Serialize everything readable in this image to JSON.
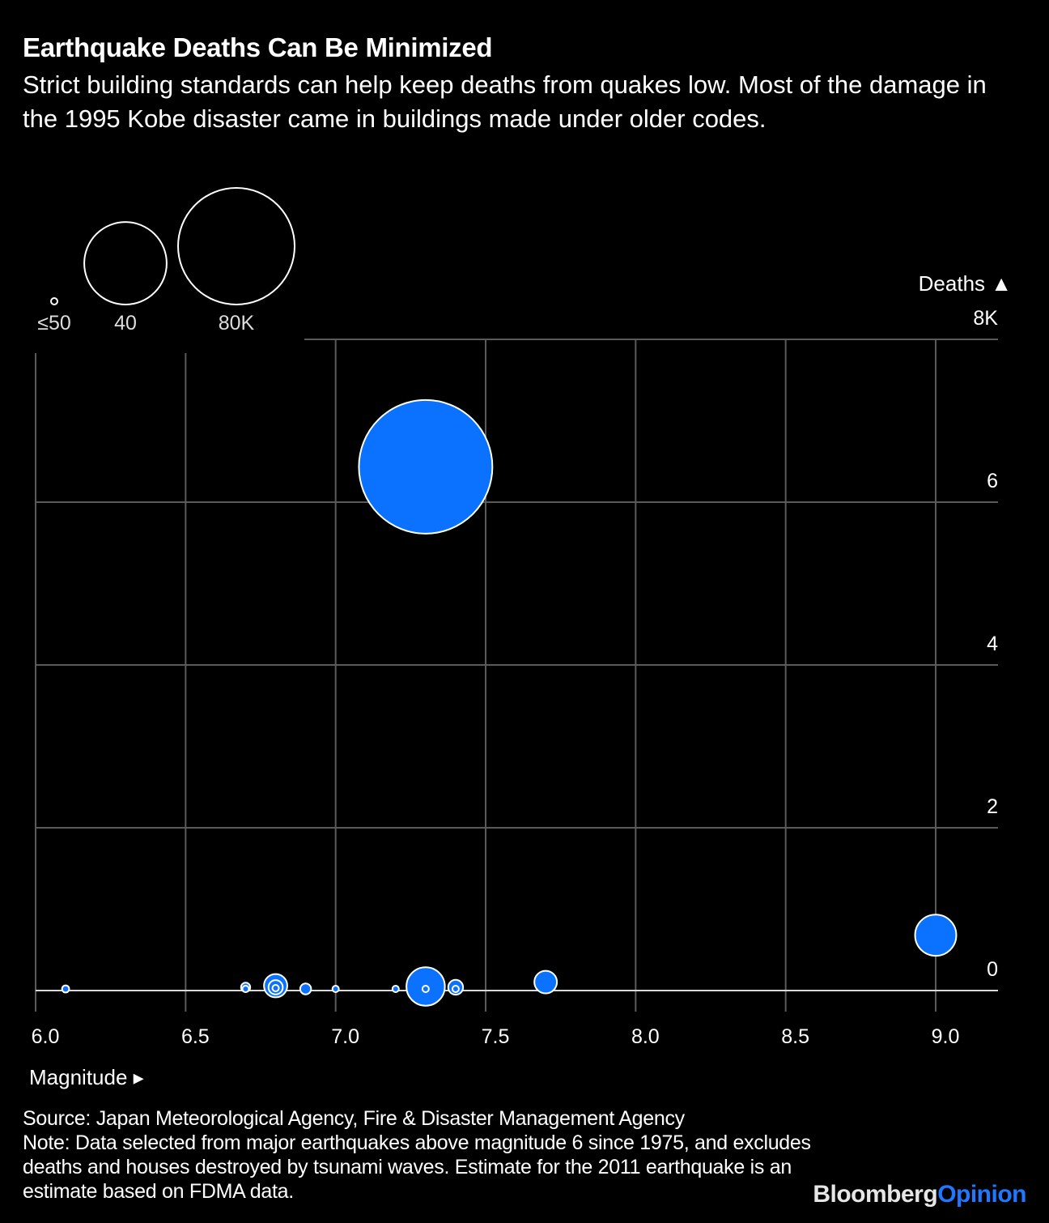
{
  "header": {
    "title": "Earthquake Deaths Can Be Minimized",
    "subtitle": "Strict building standards can help keep deaths from quakes low. Most of the damage in the 1995 Kobe disaster came in buildings made under older codes."
  },
  "footer": {
    "source": "Source: Japan Meteorological Agency, Fire & Disaster Management Agency",
    "note": "Note: Data selected from major earthquakes above magnitude 6 since 1975, and excludes deaths and houses destroyed by tsunami waves. Estimate for the 2011 earthquake is an estimate based on FDMA data."
  },
  "brand": {
    "part1": "Bloomberg",
    "part2": "Opinion"
  },
  "colors": {
    "background": "#000000",
    "bubble": "#0a72ff",
    "bubble_stroke": "#ffffff",
    "grid": "#5a5a5a",
    "baseline": "#d9d9d9",
    "brand_accent": "#1f78ff"
  },
  "chart_data": {
    "type": "scatter",
    "title": "Earthquake Deaths Can Be Minimized",
    "xlabel": "Magnitude ▸",
    "ylabel": "Deaths ▲",
    "xlim": [
      6.0,
      9.2
    ],
    "ylim": [
      0,
      8000
    ],
    "x_ticks": [
      6.0,
      6.5,
      7.0,
      7.5,
      8.0,
      8.5,
      9.0
    ],
    "x_tick_labels": [
      "6.0",
      "6.5",
      "7.0",
      "7.5",
      "8.0",
      "8.5",
      "9.0"
    ],
    "y_ticks": [
      0,
      2000,
      4000,
      6000,
      8000
    ],
    "y_tick_labels": [
      "0",
      "2",
      "4",
      "6",
      "8K"
    ],
    "grid": true,
    "size_encoding": "Houses destroyed",
    "size_legend": [
      {
        "label": "≤50",
        "value": 50
      },
      {
        "label": "40",
        "value": 40000
      },
      {
        "label": "80K",
        "value": 80000
      }
    ],
    "points": [
      {
        "magnitude": 6.1,
        "deaths": 20,
        "houses": 300
      },
      {
        "magnitude": 6.7,
        "deaths": 40,
        "houses": 500
      },
      {
        "magnitude": 6.7,
        "deaths": 10,
        "houses": 200
      },
      {
        "magnitude": 6.8,
        "deaths": 60,
        "houses": 3200
      },
      {
        "magnitude": 6.8,
        "deaths": 40,
        "houses": 1200
      },
      {
        "magnitude": 6.8,
        "deaths": 30,
        "houses": 50
      },
      {
        "magnitude": 6.9,
        "deaths": 10,
        "houses": 700
      },
      {
        "magnitude": 7.0,
        "deaths": 5,
        "houses": 150
      },
      {
        "magnitude": 7.2,
        "deaths": 20,
        "houses": 200
      },
      {
        "magnitude": 7.3,
        "deaths": 6434,
        "houses": 104900
      },
      {
        "magnitude": 7.3,
        "deaths": 50,
        "houses": 8700
      },
      {
        "magnitude": 7.3,
        "deaths": 10,
        "houses": 50
      },
      {
        "magnitude": 7.4,
        "deaths": 40,
        "houses": 1300
      },
      {
        "magnitude": 7.4,
        "deaths": 10,
        "houses": 200
      },
      {
        "magnitude": 7.7,
        "deaths": 104,
        "houses": 3000
      },
      {
        "magnitude": 9.0,
        "deaths": 680,
        "houses": 10000
      }
    ]
  }
}
